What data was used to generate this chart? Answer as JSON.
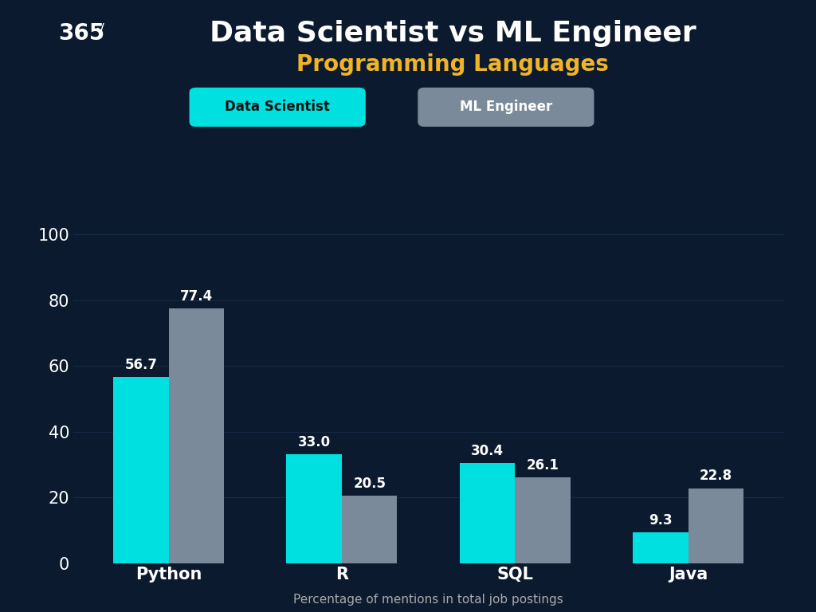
{
  "title_line1": "Data Scientist vs ML Engineer",
  "title_line2": "Programming Languages",
  "title_color": "#ffffff",
  "subtitle_color": "#f0b429",
  "xlabel": "Percentage of mentions in total job postings",
  "categories": [
    "Python",
    "R",
    "SQL",
    "Java"
  ],
  "ds_values": [
    56.7,
    33.0,
    30.4,
    9.3
  ],
  "ml_values": [
    77.4,
    20.5,
    26.1,
    22.8
  ],
  "ds_color": "#00e0e0",
  "ml_color": "#7a8a9a",
  "background_color": "#0b1a2e",
  "text_color": "#ffffff",
  "axis_label_color": "#aaaaaa",
  "legend_ds_label": "Data Scientist",
  "legend_ml_label": "ML Engineer",
  "ylim": [
    0,
    108
  ],
  "yticks": [
    0,
    20,
    40,
    60,
    80,
    100
  ],
  "bar_width": 0.32,
  "logo_text": "365",
  "title_fontsize": 26,
  "subtitle_fontsize": 20,
  "tick_fontsize": 15,
  "bar_label_fontsize": 12,
  "xlabel_fontsize": 11,
  "grid_color": "#1e3050",
  "grid_alpha": 0.7
}
